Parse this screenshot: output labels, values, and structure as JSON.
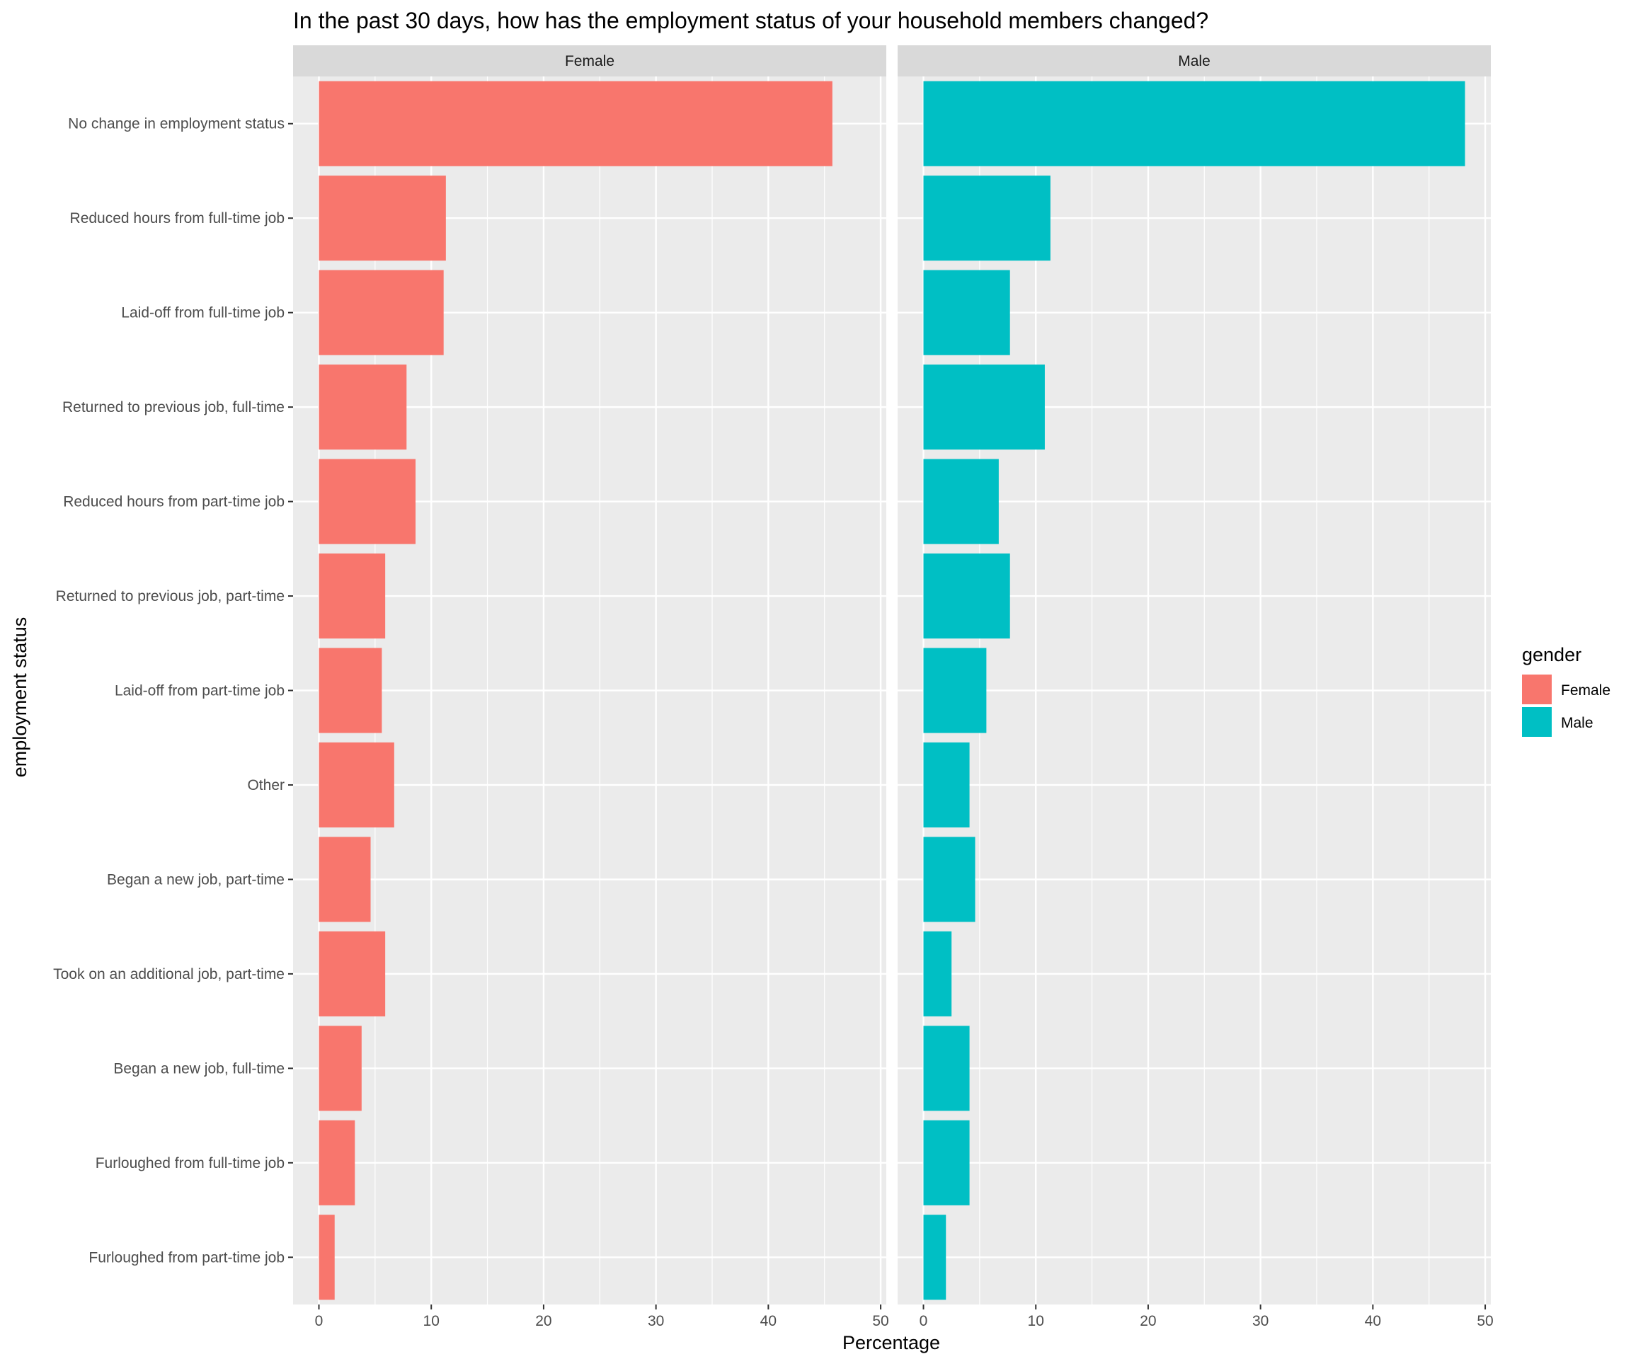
{
  "chart_data": {
    "type": "bar",
    "orientation": "horizontal",
    "title": "In the past 30 days, how has the employment status of your household members changed?",
    "xlabel": "Percentage",
    "ylabel": "employment status",
    "xlim": [
      -2.3,
      50.5
    ],
    "xticks": [
      0,
      10,
      20,
      30,
      40,
      50
    ],
    "grid": true,
    "facets": [
      "Female",
      "Male"
    ],
    "categories": [
      "No change in employment status",
      "Reduced hours from full-time job",
      "Laid-off from full-time job",
      "Returned to previous job, full-time",
      "Reduced hours from part-time job",
      "Returned to previous job, part-time",
      "Laid-off from part-time job",
      "Other",
      "Began a new job, part-time",
      "Took on an additional job, part-time",
      "Began a new job, full-time",
      "Furloughed from full-time job",
      "Furloughed from part-time job"
    ],
    "series": [
      {
        "name": "Female",
        "color": "#F8766D",
        "values": [
          45.7,
          11.3,
          11.1,
          7.8,
          8.6,
          5.9,
          5.6,
          6.7,
          4.6,
          5.9,
          3.8,
          3.2,
          1.4
        ]
      },
      {
        "name": "Male",
        "color": "#00BFC4",
        "values": [
          48.2,
          11.3,
          7.7,
          10.8,
          6.7,
          7.7,
          5.6,
          4.1,
          4.6,
          2.5,
          4.1,
          4.1,
          2.0
        ]
      }
    ],
    "legend": {
      "title": "gender",
      "position": "right",
      "entries": [
        "Female",
        "Male"
      ]
    }
  }
}
